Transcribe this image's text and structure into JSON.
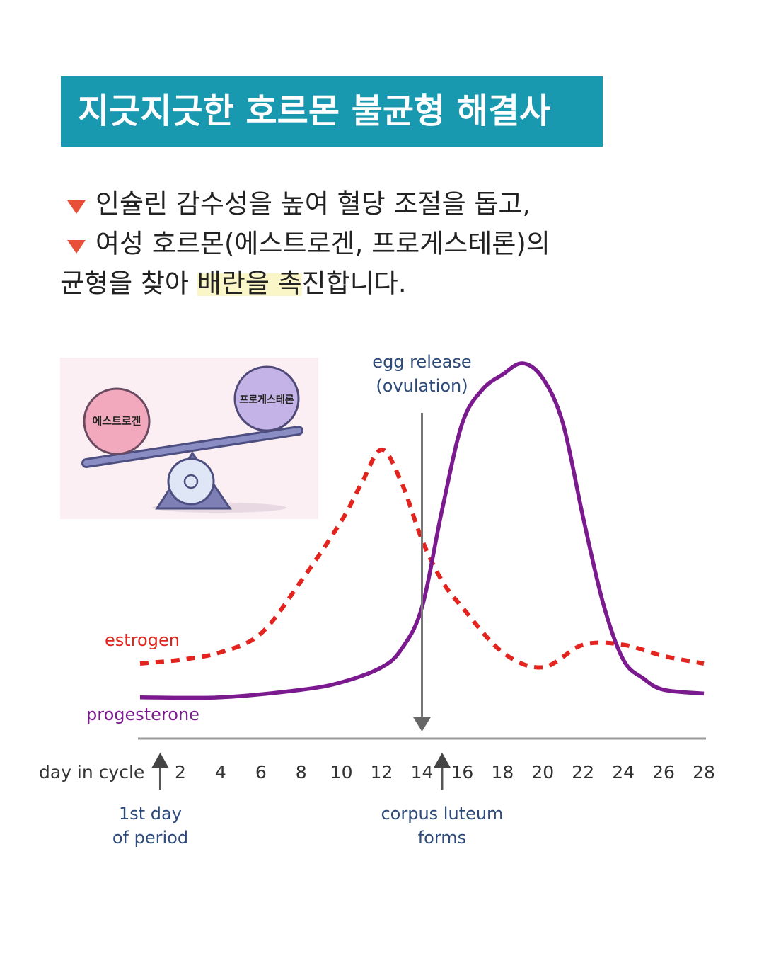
{
  "header": {
    "title": "지긋지긋한 호르몬 불균형 해결사"
  },
  "bullets": [
    "인슐린 감수성을 높여 혈당 조절을 돕고,",
    "여성 호르몬(에스트로겐, 프로게스테론)의"
  ],
  "closing": {
    "before": "균형을 찾아 ",
    "highlight": "배란을 촉",
    "after": "진합니다."
  },
  "illustration": {
    "left_ball": "에스트로겐",
    "right_ball": "프로게스테론"
  },
  "chart_data": {
    "type": "line",
    "x_label": "day in cycle",
    "xlim": [
      0,
      28
    ],
    "xticks": [
      2,
      4,
      6,
      8,
      10,
      12,
      14,
      16,
      18,
      20,
      22,
      24,
      26,
      28
    ],
    "ylim": [
      0,
      100
    ],
    "series": [
      {
        "name": "estrogen",
        "color": "#e3231d",
        "style": "dashed",
        "x": [
          0,
          2,
          4,
          6,
          8,
          10,
          11,
          12,
          13,
          14,
          15,
          16,
          18,
          20,
          22,
          24,
          26,
          28
        ],
        "values": [
          20,
          21,
          23,
          28,
          42,
          58,
          68,
          77,
          68,
          53,
          42,
          35,
          23,
          19,
          25,
          25,
          22,
          20
        ]
      },
      {
        "name": "progesterone",
        "color": "#7b1a8e",
        "style": "solid",
        "x": [
          0,
          4,
          8,
          10,
          12,
          13,
          14,
          15,
          16,
          17,
          18,
          19,
          20,
          21,
          22,
          23,
          24,
          25,
          26,
          28
        ],
        "values": [
          11,
          11,
          13,
          15,
          19,
          24,
          35,
          61,
          84,
          93,
          97,
          100,
          96,
          84,
          59,
          36,
          21,
          16,
          13,
          12
        ]
      }
    ],
    "annotations": [
      {
        "text": [
          "egg release",
          "(ovulation)"
        ],
        "x": 14,
        "direction": "down"
      },
      {
        "text": [
          "1st day",
          "of period"
        ],
        "x": 1,
        "direction": "up"
      },
      {
        "text": [
          "corpus luteum",
          "forms"
        ],
        "x": 15,
        "direction": "up"
      }
    ]
  }
}
